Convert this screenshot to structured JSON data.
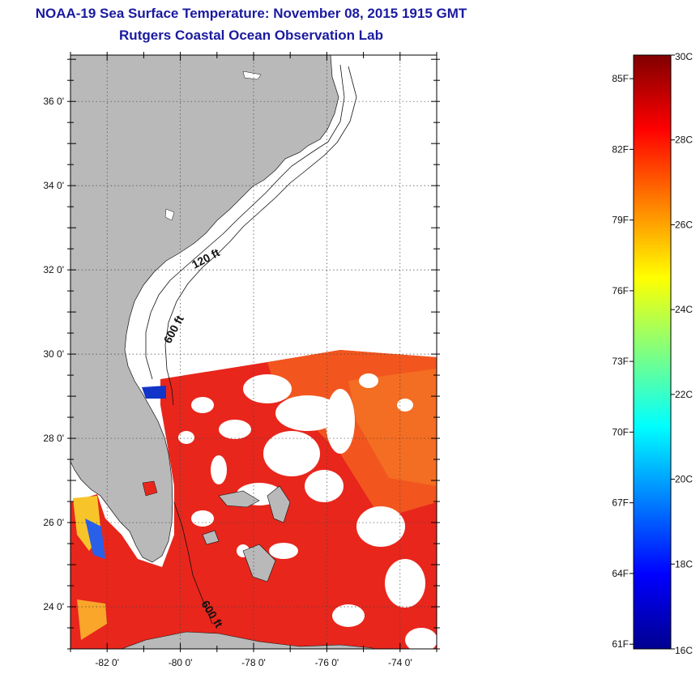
{
  "title": {
    "line1": "NOAA-19 Sea Surface Temperature:  November 08, 2015 1915 GMT",
    "line2": "Rutgers Coastal Ocean Observation Lab"
  },
  "map": {
    "lat_labels": [
      "36 0'",
      "34 0'",
      "32 0'",
      "30 0'",
      "28 0'",
      "26 0'",
      "24 0'"
    ],
    "lat_values": [
      36,
      34,
      32,
      30,
      28,
      26,
      24
    ],
    "lon_labels": [
      "-82 0'",
      "-80 0'",
      "-78 0'",
      "-76 0'",
      "-74 0'"
    ],
    "lon_values": [
      -82,
      -80,
      -78,
      -76,
      -74
    ],
    "lat_range": [
      23,
      37.1
    ],
    "lon_range": [
      -83,
      -73
    ],
    "contours": [
      "120 ft",
      "600 ft",
      "600 ft"
    ],
    "land_color": "#b9b9b9",
    "cloud_color": "#ffffff"
  },
  "colorbar": {
    "fahrenheit": [
      "85F",
      "82F",
      "79F",
      "76F",
      "73F",
      "70F",
      "67F",
      "64F",
      "61F"
    ],
    "celsius": [
      "30C",
      "28C",
      "26C",
      "24C",
      "22C",
      "20C",
      "18C",
      "16C"
    ],
    "range_c": [
      16,
      30
    ],
    "colors": [
      "#00008f",
      "#0000ff",
      "#0080ff",
      "#00ffff",
      "#80ff80",
      "#ffff00",
      "#ff8000",
      "#ff0000",
      "#800000"
    ]
  }
}
